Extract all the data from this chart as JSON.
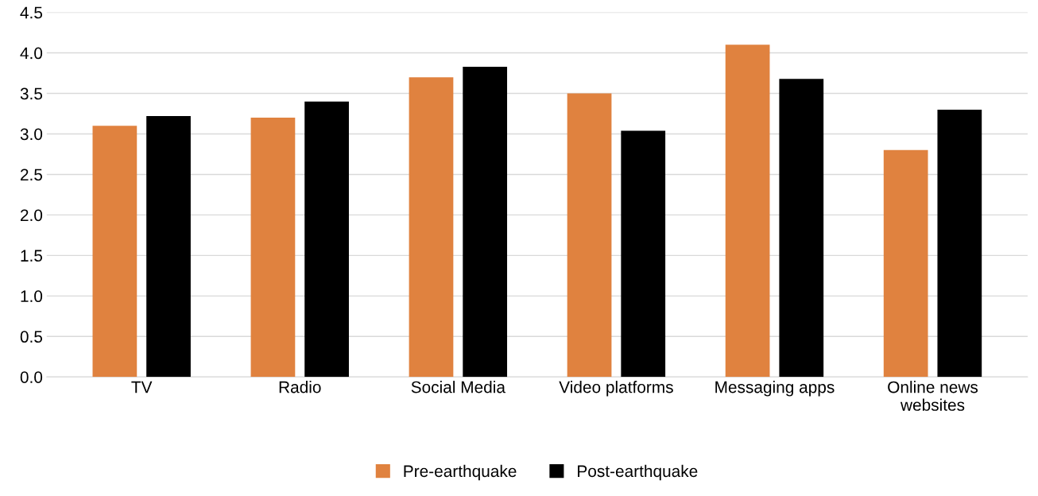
{
  "chart_data": {
    "type": "bar",
    "categories": [
      "TV",
      "Radio",
      "Social Media",
      "Video platforms",
      "Messaging apps",
      "Online news\nwebsites"
    ],
    "series": [
      {
        "name": "Pre-earthquake",
        "color": "#e0823f",
        "values": [
          3.1,
          3.2,
          3.7,
          3.5,
          4.1,
          2.8
        ]
      },
      {
        "name": "Post-earthquake",
        "color": "#000000",
        "values": [
          3.22,
          3.4,
          3.83,
          3.04,
          3.68,
          3.3
        ]
      }
    ],
    "ylim": [
      0,
      4.5
    ],
    "yticks": [
      {
        "value": 0,
        "label": "0.0"
      },
      {
        "value": 0.5,
        "label": "0.5"
      },
      {
        "value": 1,
        "label": "1.0"
      },
      {
        "value": 1.5,
        "label": "1.5"
      },
      {
        "value": 2,
        "label": "2.0"
      },
      {
        "value": 2.5,
        "label": "2.5"
      },
      {
        "value": 3,
        "label": "3.0"
      },
      {
        "value": 3.5,
        "label": "3.5"
      },
      {
        "value": 4,
        "label": "4.0"
      },
      {
        "value": 4.5,
        "label": "4.5"
      }
    ],
    "grid": "y",
    "legend": "bottom"
  }
}
